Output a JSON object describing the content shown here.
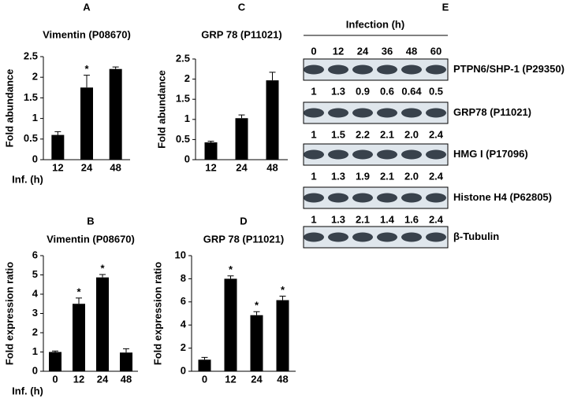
{
  "chart_data": [
    {
      "type": "bar",
      "panel": "A",
      "title": "Vimentin (P08670)",
      "y_label": "Fold abundance",
      "x_label": "Inf. (h)",
      "categories": [
        "12",
        "24",
        "48"
      ],
      "values": [
        0.6,
        1.75,
        2.2
      ],
      "errors": [
        0.08,
        0.3,
        0.05
      ],
      "significance": [
        null,
        "*",
        null
      ],
      "color": "#000000",
      "ylim": [
        0,
        2.5
      ],
      "yticks": [
        0,
        0.5,
        1,
        1.5,
        2,
        2.5
      ]
    },
    {
      "type": "bar",
      "panel": "B",
      "title": "Vimentin (P08670)",
      "y_label": "Fold expression ratio",
      "x_label": "Inf. (h)",
      "categories": [
        "0",
        "12",
        "24",
        "48"
      ],
      "values": [
        1,
        3.5,
        4.87,
        0.97
      ],
      "errors": [
        0.05,
        0.3,
        0.15,
        0.2
      ],
      "significance": [
        null,
        "*",
        "*",
        null
      ],
      "color": "#000000",
      "ylim": [
        0,
        6
      ],
      "yticks": [
        0,
        1,
        2,
        3,
        4,
        5,
        6
      ]
    },
    {
      "type": "bar",
      "panel": "C",
      "title": "GRP 78 (P11021)",
      "y_label": "Fold abundance",
      "categories": [
        "12",
        "24",
        "48"
      ],
      "values": [
        0.43,
        1.03,
        1.97
      ],
      "errors": [
        0.03,
        0.08,
        0.2
      ],
      "color": "#000000",
      "ylim": [
        0,
        2.5
      ],
      "yticks": [
        0,
        0.5,
        1,
        1.5,
        2,
        2.5
      ]
    },
    {
      "type": "bar",
      "panel": "D",
      "title": "GRP 78 (P11021)",
      "y_label": "Fold expression ratio",
      "categories": [
        "0",
        "12",
        "24",
        "48"
      ],
      "values": [
        1,
        8,
        4.85,
        6.15
      ],
      "errors": [
        0.2,
        0.25,
        0.3,
        0.35
      ],
      "significance": [
        null,
        "*",
        "*",
        "*"
      ],
      "color": "#000000",
      "ylim": [
        0,
        10
      ],
      "yticks": [
        0,
        2,
        4,
        6,
        8,
        10
      ]
    }
  ],
  "blot": {
    "panel": "E",
    "header": "Infection (h)",
    "timepoints": [
      "0",
      "12",
      "24",
      "36",
      "48",
      "60"
    ],
    "rows": [
      {
        "label": "PTPN6/SHP-1 (P29350)",
        "quantification": [
          "1",
          "1.3",
          "0.9",
          "0.6",
          "0.64",
          "0.5"
        ]
      },
      {
        "label": "GRP78 (P11021)",
        "quantification": [
          "1",
          "1.5",
          "2.2",
          "2.1",
          "2.0",
          "2.4"
        ]
      },
      {
        "label": "HMG I (P17096)",
        "quantification": [
          "1",
          "1.3",
          "1.9",
          "2.1",
          "2.0",
          "2.4"
        ]
      },
      {
        "label": "Histone H4 (P62805)",
        "quantification": [
          "1",
          "1.3",
          "2.1",
          "1.4",
          "1.6",
          "2.4"
        ]
      },
      {
        "label": "β-Tubulin"
      }
    ]
  }
}
